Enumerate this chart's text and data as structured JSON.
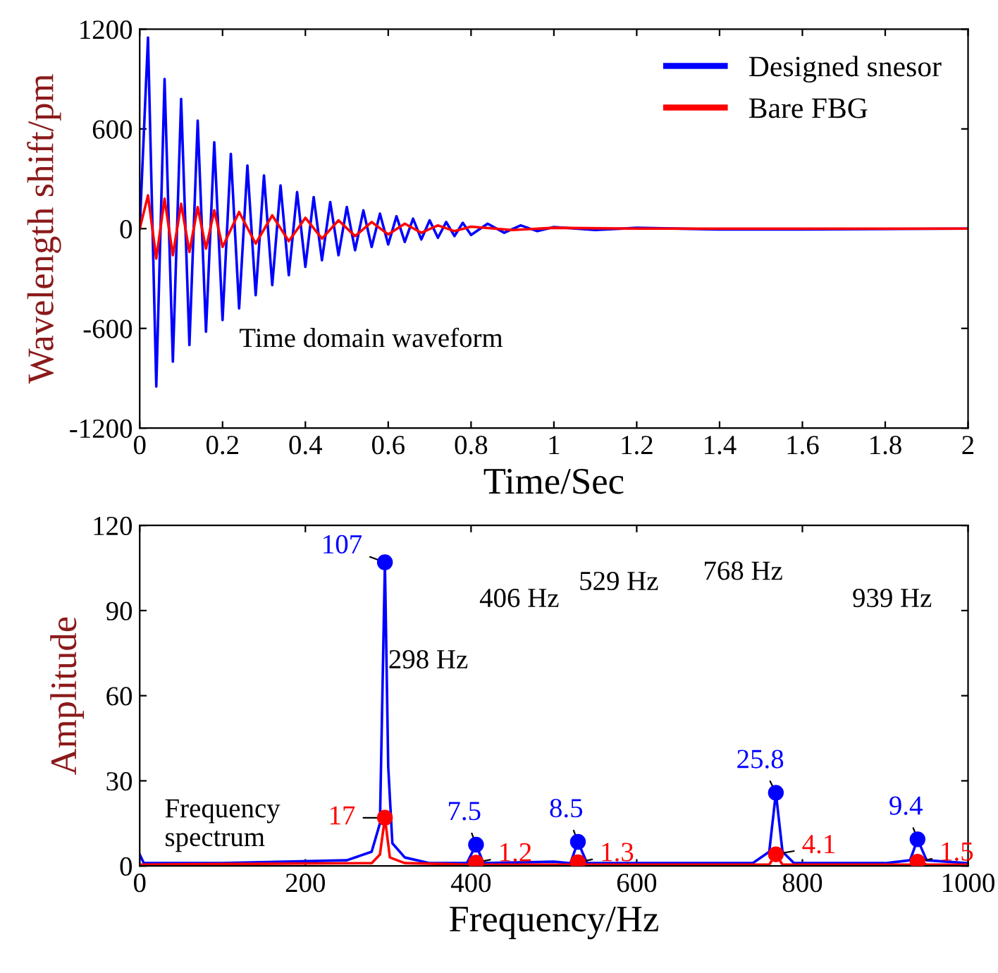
{
  "chart_data": [
    {
      "type": "line",
      "xlabel": "Time/Sec",
      "ylabel": "Wavelength shift/pm",
      "xlim": [
        0,
        2
      ],
      "ylim": [
        -1200,
        1200
      ],
      "xticks": [
        0,
        0.2,
        0.4,
        0.6,
        0.8,
        1,
        1.2,
        1.4,
        1.6,
        1.8,
        2
      ],
      "yticks": [
        -1200,
        -600,
        0,
        600,
        1200
      ],
      "grid": false,
      "legend": "top right",
      "annotations": [
        "Time domain waveform"
      ],
      "series": [
        {
          "name": "Designed snesor",
          "color": "#0000ff",
          "x": [
            0,
            0.02,
            0.04,
            0.06,
            0.08,
            0.1,
            0.12,
            0.14,
            0.16,
            0.18,
            0.2,
            0.22,
            0.24,
            0.26,
            0.28,
            0.3,
            0.32,
            0.34,
            0.36,
            0.38,
            0.4,
            0.42,
            0.44,
            0.46,
            0.48,
            0.5,
            0.52,
            0.54,
            0.56,
            0.58,
            0.6,
            0.62,
            0.64,
            0.66,
            0.68,
            0.7,
            0.72,
            0.74,
            0.76,
            0.78,
            0.8,
            0.84,
            0.88,
            0.92,
            0.96,
            1.0,
            1.1,
            1.2,
            1.4,
            1.6,
            2.0
          ],
          "values": [
            0,
            1150,
            -950,
            900,
            -800,
            780,
            -700,
            650,
            -620,
            520,
            -550,
            450,
            -480,
            380,
            -400,
            320,
            -340,
            260,
            -280,
            220,
            -230,
            190,
            -190,
            160,
            -160,
            130,
            -130,
            110,
            -110,
            90,
            -95,
            75,
            -80,
            60,
            -65,
            50,
            -55,
            40,
            -45,
            35,
            -38,
            30,
            -25,
            20,
            -15,
            10,
            -8,
            5,
            -5,
            -5,
            0
          ]
        },
        {
          "name": "Bare FBG",
          "color": "#ff0000",
          "x": [
            0,
            0.02,
            0.04,
            0.06,
            0.08,
            0.1,
            0.12,
            0.14,
            0.16,
            0.18,
            0.2,
            0.24,
            0.28,
            0.32,
            0.36,
            0.4,
            0.44,
            0.48,
            0.52,
            0.56,
            0.6,
            0.64,
            0.68,
            0.72,
            0.76,
            0.8,
            0.9,
            1.0,
            1.2,
            2.0
          ],
          "values": [
            0,
            200,
            -180,
            180,
            -160,
            150,
            -140,
            130,
            -120,
            110,
            -110,
            100,
            -90,
            80,
            -75,
            65,
            -60,
            50,
            -45,
            40,
            -35,
            30,
            -25,
            20,
            -15,
            12,
            -8,
            5,
            0,
            0
          ]
        }
      ]
    },
    {
      "type": "line",
      "xlabel": "Frequency/Hz",
      "ylabel": "Amplitude",
      "xlim": [
        0,
        1000
      ],
      "ylim": [
        0,
        120
      ],
      "xticks": [
        0,
        200,
        400,
        600,
        800,
        1000
      ],
      "yticks": [
        0,
        30,
        60,
        90,
        120
      ],
      "grid": false,
      "legend": false,
      "annotations": [
        "298 Hz",
        "406 Hz",
        "529 Hz",
        "768 Hz",
        "939 Hz",
        "Frequency\nspectrum"
      ],
      "series": [
        {
          "color": "#0000ff",
          "x": [
            0,
            5,
            100,
            250,
            280,
            290,
            296,
            300,
            305,
            320,
            350,
            395,
            406,
            415,
            500,
            520,
            529,
            540,
            740,
            760,
            768,
            776,
            790,
            900,
            930,
            939,
            950,
            1000
          ],
          "values": [
            4,
            1,
            1,
            2,
            5,
            15,
            107,
            35,
            8,
            3,
            1,
            1,
            7.5,
            1,
            1.5,
            1,
            8.5,
            1,
            1,
            5,
            25.8,
            5,
            1,
            1,
            2,
            9.4,
            2,
            1
          ]
        },
        {
          "color": "#ff0000",
          "x": [
            0,
            280,
            290,
            296,
            302,
            320,
            395,
            406,
            415,
            520,
            529,
            540,
            760,
            768,
            776,
            930,
            939,
            950,
            1000
          ],
          "values": [
            0.5,
            1,
            4,
            17,
            3,
            1,
            0.5,
            1.2,
            0.5,
            0.5,
            1.3,
            0.5,
            0.5,
            4.1,
            0.5,
            0.5,
            1.5,
            0.5,
            0.5
          ]
        },
        {
          "type": "scatter",
          "color": "#0000ff",
          "marker": "circle",
          "data_labels": true,
          "x": [
            296,
            406,
            529,
            768,
            939
          ],
          "values": [
            107,
            7.5,
            8.5,
            25.8,
            9.4
          ]
        },
        {
          "type": "scatter",
          "color": "#ff0000",
          "marker": "circle",
          "data_labels": true,
          "x": [
            296,
            406,
            529,
            768,
            939
          ],
          "values": [
            17,
            1.2,
            1.3,
            4.1,
            1.5
          ]
        }
      ]
    }
  ]
}
